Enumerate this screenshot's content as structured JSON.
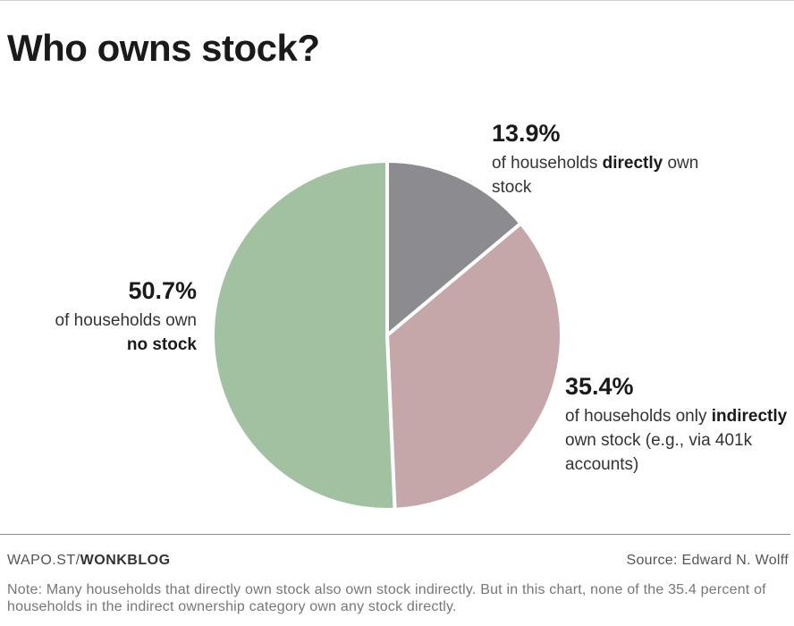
{
  "title": "Who owns stock?",
  "chart_data": {
    "type": "pie",
    "title": "Who owns stock?",
    "slices": [
      {
        "key": "direct",
        "value": 13.9,
        "pct_label": "13.9%",
        "text_pre": "of households ",
        "text_bold": "directly",
        "text_post": " own stock",
        "color": "#8c8b8f"
      },
      {
        "key": "indirect",
        "value": 35.4,
        "pct_label": "35.4%",
        "text_pre": "of households only ",
        "text_bold": "indirectly",
        "text_post": " own stock",
        "text_extra": "(e.g., via 401k accounts)",
        "color": "#c5a7aa"
      },
      {
        "key": "none",
        "value": 50.7,
        "pct_label": "50.7%",
        "text_pre": "of households own ",
        "text_bold": "no stock",
        "text_post": "",
        "color": "#a1c1a1"
      }
    ],
    "start_angle_deg": 0,
    "direction": "clockwise"
  },
  "footer": {
    "credit_prefix": "WAPO.ST/",
    "credit_bold": "WONKBLOG",
    "source": "Source: Edward N. Wolff",
    "note": "Note: Many households that directly own stock also own stock indirectly. But in this chart, none of the 35.4 percent of households in the indirect ownership category own any stock directly."
  }
}
